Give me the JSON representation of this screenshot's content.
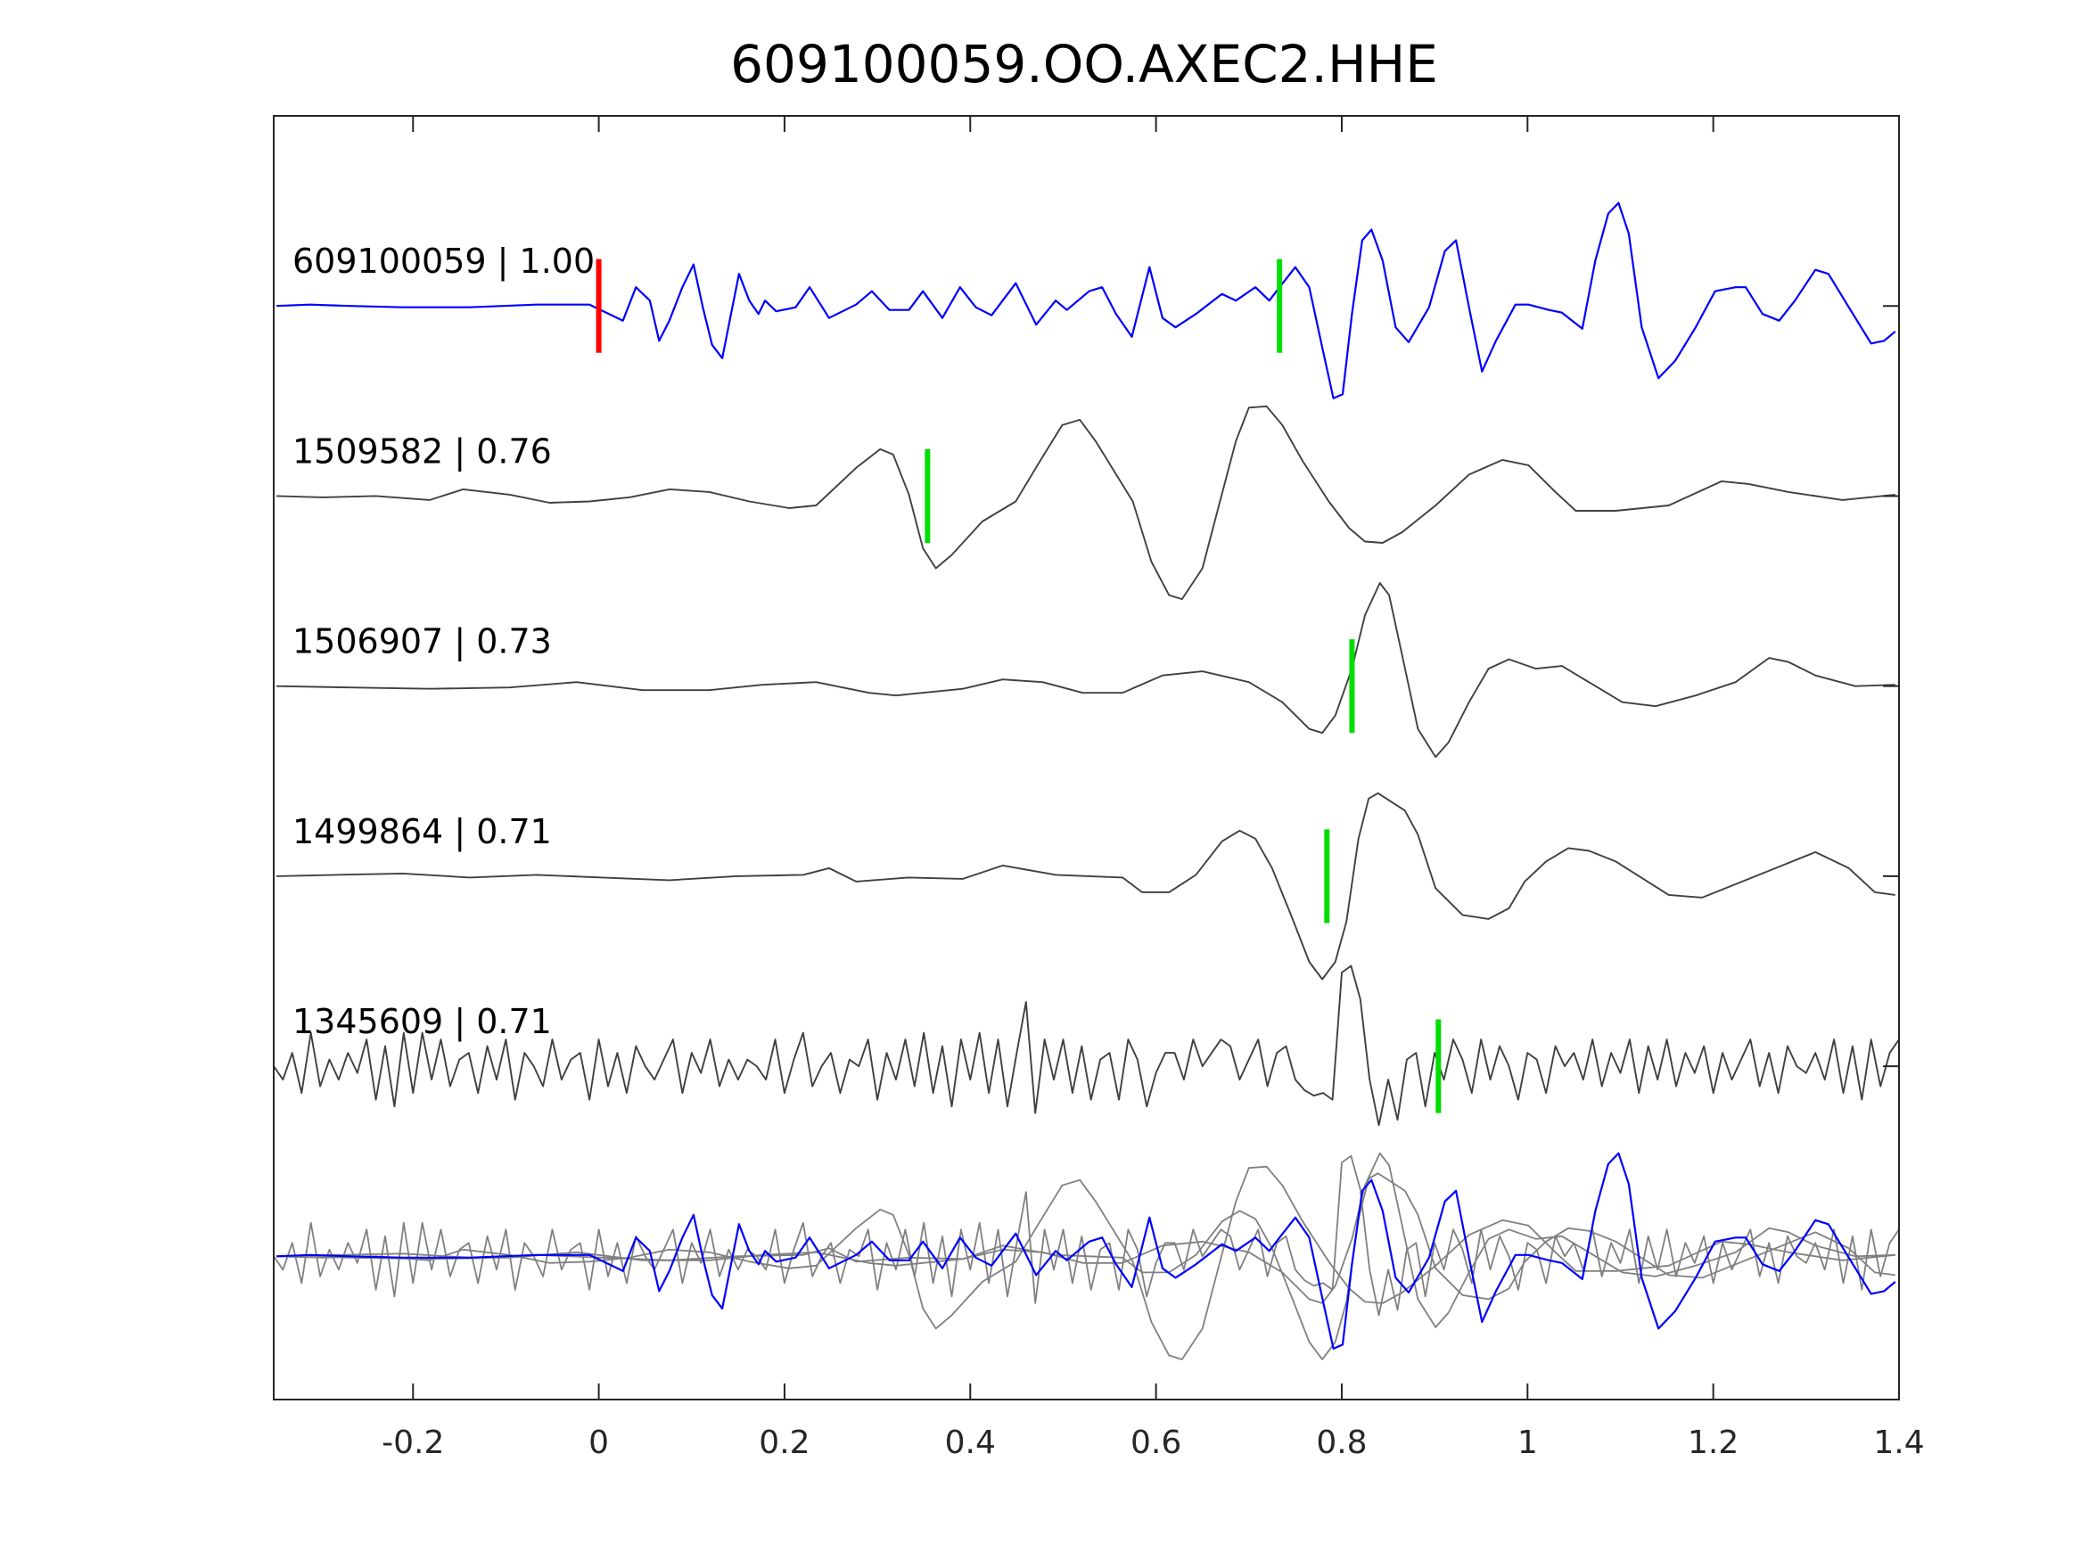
{
  "chart_data": {
    "type": "line",
    "title": "609100059.OO.AXEC2.HHE",
    "xlabel": "",
    "ylabel": "",
    "xlim": [
      -0.35,
      1.4
    ],
    "xticks": [
      -0.2,
      0,
      0.2,
      0.4,
      0.6,
      0.8,
      1,
      1.2,
      1.4
    ],
    "xtick_labels": [
      "-0.2",
      "0",
      "0.2",
      "0.4",
      "0.6",
      "0.8",
      "1",
      "1.2",
      "1.4"
    ],
    "trace_spacing": 1.42,
    "grid": false,
    "colors": {
      "template": "#0000ff",
      "match": "#404040",
      "stack": "#808080",
      "origin_pick": "#ff0000",
      "phase_pick": "#00dd00"
    },
    "series": [
      {
        "name": "609100059 | 1.00",
        "role": "template",
        "origin_pick": 0,
        "pick": 0.733,
        "t": [
          -0.347,
          -0.311,
          -0.268,
          -0.211,
          -0.139,
          -0.067,
          -0.01,
          0.011,
          0.026,
          0.04,
          0.055,
          0.065,
          0.076,
          0.09,
          0.102,
          0.112,
          0.122,
          0.133,
          0.151,
          0.162,
          0.172,
          0.179,
          0.191,
          0.212,
          0.227,
          0.248,
          0.277,
          0.294,
          0.313,
          0.334,
          0.349,
          0.37,
          0.389,
          0.406,
          0.423,
          0.449,
          0.471,
          0.492,
          0.504,
          0.528,
          0.542,
          0.557,
          0.574,
          0.593,
          0.607,
          0.621,
          0.643,
          0.671,
          0.686,
          0.707,
          0.722,
          0.733,
          0.75,
          0.765,
          0.779,
          0.791,
          0.801,
          0.811,
          0.822,
          0.832,
          0.844,
          0.858,
          0.872,
          0.894,
          0.911,
          0.923,
          0.937,
          0.951,
          0.966,
          0.987,
          1.001,
          1.023,
          1.037,
          1.059,
          1.073,
          1.087,
          1.098,
          1.109,
          1.123,
          1.141,
          1.159,
          1.181,
          1.202,
          1.224,
          1.235,
          1.253,
          1.271,
          1.288,
          1.31,
          1.324,
          1.346,
          1.37,
          1.384,
          1.396
        ],
        "amp": [
          0,
          0.01,
          0,
          -0.01,
          -0.01,
          0.01,
          0.01,
          -0.06,
          -0.11,
          0.14,
          0.04,
          -0.26,
          -0.11,
          0.14,
          0.31,
          -0.01,
          -0.29,
          -0.39,
          0.24,
          0.04,
          -0.06,
          0.04,
          -0.04,
          -0.01,
          0.14,
          -0.09,
          0.01,
          0.11,
          -0.03,
          -0.03,
          0.11,
          -0.09,
          0.14,
          -0.01,
          -0.07,
          0.17,
          -0.14,
          0.04,
          -0.03,
          0.11,
          0.14,
          -0.06,
          -0.23,
          0.29,
          -0.09,
          -0.16,
          -0.06,
          0.09,
          0.04,
          0.14,
          0.04,
          0.14,
          0.29,
          0.14,
          -0.31,
          -0.69,
          -0.66,
          -0.06,
          0.49,
          0.57,
          0.34,
          -0.16,
          -0.27,
          -0.01,
          0.41,
          0.49,
          -0.01,
          -0.49,
          -0.26,
          0.01,
          0.01,
          -0.03,
          -0.05,
          -0.17,
          0.34,
          0.69,
          0.77,
          0.54,
          -0.16,
          -0.54,
          -0.41,
          -0.16,
          0.11,
          0.14,
          0.14,
          -0.06,
          -0.11,
          0.04,
          0.27,
          0.24,
          -0.01,
          -0.28,
          -0.26,
          -0.19
        ]
      },
      {
        "name": "1509582 | 0.76",
        "role": "match",
        "pick": 0.354,
        "t": [
          -0.347,
          -0.297,
          -0.24,
          -0.182,
          -0.146,
          -0.096,
          -0.053,
          -0.01,
          0.033,
          0.076,
          0.119,
          0.162,
          0.205,
          0.234,
          0.277,
          0.303,
          0.317,
          0.334,
          0.349,
          0.363,
          0.38,
          0.413,
          0.449,
          0.475,
          0.499,
          0.518,
          0.535,
          0.575,
          0.595,
          0.614,
          0.628,
          0.65,
          0.667,
          0.686,
          0.7,
          0.719,
          0.736,
          0.758,
          0.786,
          0.808,
          0.825,
          0.844,
          0.865,
          0.901,
          0.937,
          0.973,
          1.001,
          1.03,
          1.052,
          1.095,
          1.152,
          1.209,
          1.238,
          1.281,
          1.339,
          1.396
        ],
        "amp": [
          0,
          -0.01,
          0,
          -0.03,
          0.05,
          0.01,
          -0.05,
          -0.04,
          -0.01,
          0.05,
          0.03,
          -0.04,
          -0.09,
          -0.07,
          0.21,
          0.35,
          0.31,
          0.01,
          -0.39,
          -0.54,
          -0.44,
          -0.19,
          -0.04,
          0.26,
          0.53,
          0.57,
          0.41,
          -0.04,
          -0.49,
          -0.74,
          -0.77,
          -0.54,
          -0.09,
          0.41,
          0.66,
          0.67,
          0.53,
          0.26,
          -0.04,
          -0.24,
          -0.34,
          -0.35,
          -0.27,
          -0.07,
          0.16,
          0.27,
          0.23,
          0.03,
          -0.11,
          -0.11,
          -0.07,
          0.11,
          0.09,
          0.03,
          -0.03,
          0.01
        ]
      },
      {
        "name": "1506907 | 0.73",
        "role": "match",
        "pick": 0.811,
        "t": [
          -0.347,
          -0.268,
          -0.182,
          -0.096,
          -0.024,
          0.047,
          0.119,
          0.176,
          0.234,
          0.291,
          0.32,
          0.392,
          0.435,
          0.478,
          0.521,
          0.564,
          0.607,
          0.65,
          0.7,
          0.736,
          0.765,
          0.779,
          0.793,
          0.811,
          0.825,
          0.841,
          0.851,
          0.865,
          0.882,
          0.901,
          0.915,
          0.937,
          0.958,
          0.98,
          1.009,
          1.037,
          1.066,
          1.102,
          1.138,
          1.181,
          1.224,
          1.26,
          1.281,
          1.31,
          1.353,
          1.396
        ],
        "amp": [
          0,
          -0.01,
          -0.02,
          -0.01,
          0.03,
          -0.03,
          -0.03,
          0.01,
          0.03,
          -0.05,
          -0.07,
          -0.02,
          0.05,
          0.03,
          -0.05,
          -0.05,
          0.08,
          0.11,
          0.03,
          -0.12,
          -0.32,
          -0.35,
          -0.22,
          0.13,
          0.53,
          0.77,
          0.68,
          0.23,
          -0.32,
          -0.53,
          -0.42,
          -0.12,
          0.13,
          0.2,
          0.13,
          0.15,
          0.03,
          -0.12,
          -0.15,
          -0.07,
          0.03,
          0.21,
          0.18,
          0.08,
          0,
          0.01
        ]
      },
      {
        "name": "1499864 | 0.71",
        "role": "match",
        "pick": 0.784,
        "t": [
          -0.347,
          -0.283,
          -0.211,
          -0.139,
          -0.067,
          0.004,
          0.076,
          0.148,
          0.22,
          0.248,
          0.277,
          0.334,
          0.392,
          0.435,
          0.492,
          0.564,
          0.585,
          0.614,
          0.643,
          0.671,
          0.69,
          0.707,
          0.725,
          0.747,
          0.765,
          0.779,
          0.793,
          0.805,
          0.818,
          0.829,
          0.839,
          0.868,
          0.882,
          0.901,
          0.93,
          0.958,
          0.98,
          0.997,
          1.02,
          1.044,
          1.066,
          1.095,
          1.152,
          1.188,
          1.224,
          1.267,
          1.31,
          1.346,
          1.374,
          1.396
        ],
        "amp": [
          0,
          0.01,
          0.02,
          -0.01,
          0.01,
          -0.01,
          -0.03,
          0,
          0.01,
          0.06,
          -0.04,
          -0.01,
          -0.02,
          0.08,
          0.01,
          -0.01,
          -0.12,
          -0.12,
          0.01,
          0.26,
          0.34,
          0.28,
          0.06,
          -0.32,
          -0.64,
          -0.77,
          -0.64,
          -0.34,
          0.28,
          0.58,
          0.62,
          0.49,
          0.31,
          -0.09,
          -0.29,
          -0.32,
          -0.24,
          -0.04,
          0.11,
          0.21,
          0.19,
          0.11,
          -0.14,
          -0.16,
          -0.06,
          0.06,
          0.18,
          0.06,
          -0.12,
          -0.14
        ]
      },
      {
        "name": "1345609 | 0.71",
        "role": "match",
        "pick": 0.904,
        "t0": -0.35,
        "dt": 0.01,
        "amp": [
          0.0,
          -0.1,
          0.1,
          -0.2,
          0.25,
          -0.15,
          0.05,
          -0.1,
          0.1,
          -0.05,
          0.2,
          -0.25,
          0.15,
          -0.3,
          0.25,
          -0.2,
          0.25,
          -0.1,
          0.2,
          -0.15,
          0.05,
          0.1,
          -0.2,
          0.15,
          -0.1,
          0.2,
          -0.25,
          0.1,
          0.0,
          -0.15,
          0.2,
          -0.1,
          0.05,
          0.1,
          -0.25,
          0.2,
          -0.15,
          0.1,
          -0.2,
          0.15,
          0.0,
          -0.1,
          0.05,
          0.2,
          -0.2,
          0.1,
          -0.05,
          0.2,
          -0.15,
          0.05,
          -0.1,
          0.05,
          0.0,
          -0.1,
          0.2,
          -0.2,
          0.05,
          0.25,
          -0.15,
          0.0,
          0.1,
          -0.2,
          0.05,
          0.0,
          0.2,
          -0.25,
          0.1,
          -0.1,
          0.2,
          -0.15,
          0.25,
          -0.2,
          0.15,
          -0.3,
          0.2,
          -0.1,
          0.25,
          -0.2,
          0.2,
          -0.3,
          0.1,
          0.48,
          -0.35,
          0.2,
          -0.1,
          0.2,
          -0.2,
          0.15,
          -0.25,
          0.05,
          0.1,
          -0.25,
          0.2,
          0.05,
          -0.3,
          -0.05,
          0.1,
          0.1,
          -0.1,
          0.2,
          0.0,
          0.1,
          0.2,
          0.15,
          -0.1,
          0.05,
          0.2,
          -0.15,
          0.1,
          0.15,
          -0.1,
          -0.18,
          -0.22,
          -0.2,
          -0.25,
          0.7,
          0.75,
          0.5,
          -0.1,
          -0.44,
          -0.1,
          -0.4,
          0.05,
          0.1,
          -0.3,
          0.1,
          -0.1,
          0.2,
          0.05,
          -0.2,
          0.2,
          -0.1,
          0.15,
          0.0,
          -0.25,
          0.1,
          0.05,
          -0.2,
          0.15,
          0.0,
          0.1,
          -0.1,
          0.2,
          -0.15,
          0.1,
          -0.05,
          0.2,
          -0.2,
          0.15,
          -0.1,
          0.2,
          -0.15,
          0.1,
          -0.05,
          0.15,
          -0.2,
          0.1,
          -0.1,
          0.05,
          0.2,
          -0.15,
          0.1,
          -0.2,
          0.15,
          0.0,
          -0.05,
          0.1,
          -0.1,
          0.2,
          -0.2,
          0.15,
          -0.25,
          0.2,
          -0.15,
          0.1,
          0.2,
          -0.1
        ]
      }
    ],
    "stack": {
      "description_role": "overlay of all traces",
      "enabled": true
    }
  }
}
